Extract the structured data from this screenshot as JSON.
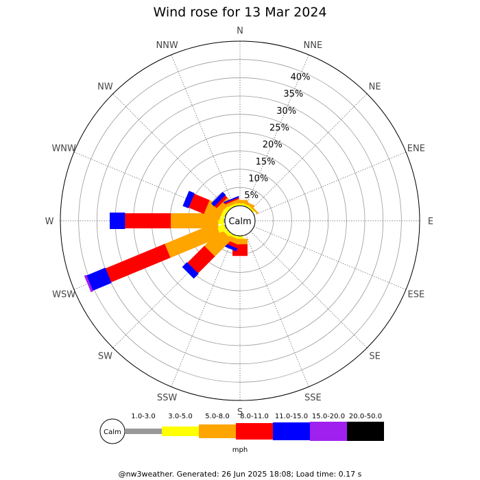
{
  "chart_data": {
    "type": "wind-rose",
    "title": "Wind rose for 13 Mar 2024",
    "directions": [
      "N",
      "NNE",
      "NE",
      "ENE",
      "E",
      "ESE",
      "SE",
      "SSE",
      "S",
      "SSW",
      "SW",
      "WSW",
      "W",
      "WNW",
      "NW",
      "NNW"
    ],
    "radial_ticks": [
      "5%",
      "10%",
      "15%",
      "20%",
      "25%",
      "30%",
      "35%",
      "40%"
    ],
    "radial_range": [
      0,
      45
    ],
    "calm_label": "Calm",
    "speed_bins": [
      {
        "label": "1.0-3.0",
        "color": "#999999"
      },
      {
        "label": "3.0-5.0",
        "color": "#ffff00"
      },
      {
        "label": "5.0-8.0",
        "color": "#ffa500"
      },
      {
        "label": "8.0-11.0",
        "color": "#ff0000"
      },
      {
        "label": "11.0-15.0",
        "color": "#0000ff"
      },
      {
        "label": "15.0-20.0",
        "color": "#a020f0"
      },
      {
        "label": "20.0-50.0",
        "color": "#000000"
      }
    ],
    "units": "mph",
    "series": [
      {
        "direction": "N",
        "values": [
          0.3,
          0.5,
          0.8,
          0,
          0,
          0,
          0
        ]
      },
      {
        "direction": "NNE",
        "values": [
          0.3,
          0.5,
          0.5,
          0,
          0,
          0,
          0
        ]
      },
      {
        "direction": "NE",
        "values": [
          0.3,
          0.4,
          0.3,
          0,
          0,
          0,
          0
        ]
      },
      {
        "direction": "ENE",
        "values": [
          0,
          0,
          0,
          0,
          0,
          0,
          0
        ]
      },
      {
        "direction": "E",
        "values": [
          0,
          0,
          0,
          0,
          0,
          0,
          0
        ]
      },
      {
        "direction": "ESE",
        "values": [
          0,
          0,
          0,
          0,
          0,
          0,
          0
        ]
      },
      {
        "direction": "SE",
        "values": [
          0,
          0,
          0,
          0,
          0,
          0,
          0
        ]
      },
      {
        "direction": "SSE",
        "values": [
          0,
          0,
          0,
          0,
          0,
          0,
          0
        ]
      },
      {
        "direction": "S",
        "values": [
          0.3,
          0.7,
          1.5,
          3.0,
          0,
          0,
          0
        ]
      },
      {
        "direction": "SSW",
        "values": [
          0.3,
          0.6,
          1.4,
          1.0,
          0.7,
          0,
          0
        ]
      },
      {
        "direction": "SW",
        "values": [
          0.3,
          1.0,
          6.5,
          6.5,
          1.7,
          0,
          0
        ]
      },
      {
        "direction": "WSW",
        "values": [
          0.5,
          2.0,
          15.0,
          17.5,
          5.5,
          0.5,
          0
        ]
      },
      {
        "direction": "W",
        "values": [
          0.5,
          1.5,
          13.0,
          12.5,
          4.0,
          0,
          0
        ]
      },
      {
        "direction": "WNW",
        "values": [
          0.4,
          1.0,
          4.5,
          4.5,
          1.5,
          0,
          0
        ]
      },
      {
        "direction": "NW",
        "values": [
          0.3,
          1.0,
          1.7,
          0.8,
          1.0,
          0,
          0
        ]
      },
      {
        "direction": "NNW",
        "values": [
          0.3,
          0.6,
          0.8,
          0.4,
          0.2,
          0,
          0
        ]
      }
    ]
  },
  "footer": "@nw3weather. Generated: 26 Jun 2025 18:08; Load time: 0.17 s"
}
